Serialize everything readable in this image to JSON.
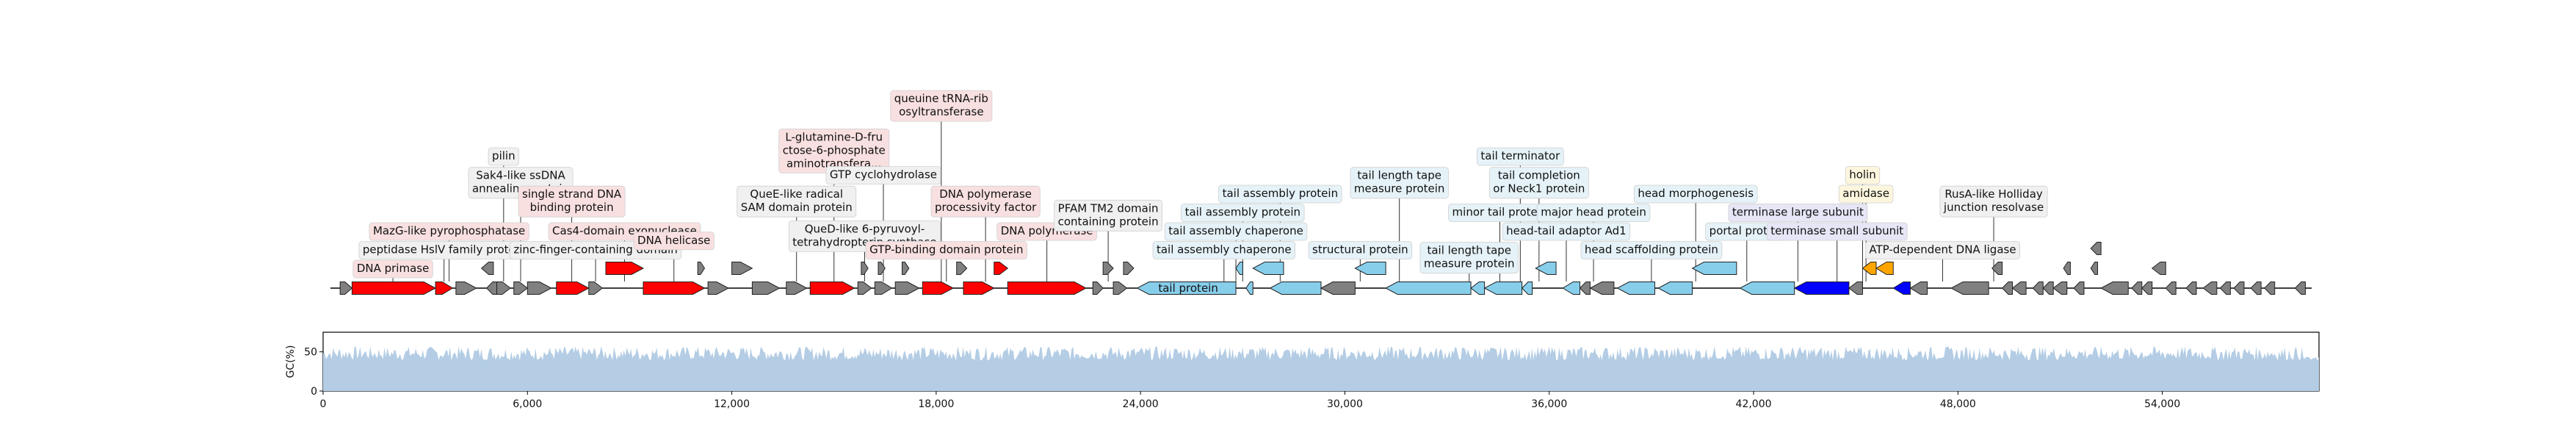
{
  "colors": {
    "grey": "#808080",
    "red": "#ff0000",
    "light_blue": "#87ceeb",
    "blue": "#0000ff",
    "orange": "#ffa500",
    "gc_fill": "#b4cde5",
    "box_red": "#f9e0e0",
    "box_blue": "#e5f2f8",
    "box_lavender": "#e6e6f7",
    "box_yellow": "#fdf6de",
    "box_grey": "#f0f0f0"
  },
  "genome": {
    "length": 58600
  },
  "genes": [
    {
      "start": 500,
      "end": 850,
      "strand": 1,
      "color": "grey"
    },
    {
      "start": 850,
      "end": 3300,
      "strand": 1,
      "color": "red",
      "label": "DNA primase"
    },
    {
      "start": 3300,
      "end": 3800,
      "strand": 1,
      "color": "red",
      "label": "peptidase HslV family protein"
    },
    {
      "start": 3900,
      "end": 4500,
      "strand": 1,
      "color": "grey"
    },
    {
      "start": 4650,
      "end": 5000,
      "strand": -1,
      "color": "grey",
      "row": 2
    },
    {
      "start": 4800,
      "end": 5100,
      "strand": -1,
      "color": "grey",
      "label": "MazG-like pyrophosphatase"
    },
    {
      "start": 5100,
      "end": 5500,
      "strand": 1,
      "color": "grey",
      "label": "pilin"
    },
    {
      "start": 5600,
      "end": 6000,
      "strand": 1,
      "color": "grey",
      "label": "Sak4-like ssDNA annealing protein"
    },
    {
      "start": 6000,
      "end": 6700,
      "strand": 1,
      "color": "grey"
    },
    {
      "start": 6850,
      "end": 7800,
      "strand": 1,
      "color": "red",
      "label": "single strand DNA binding protein"
    },
    {
      "start": 7800,
      "end": 8200,
      "strand": 1,
      "color": "grey",
      "label": "zinc-finger-containing domain"
    },
    {
      "start": 8300,
      "end": 9400,
      "strand": 1,
      "color": "red",
      "row": 2,
      "label": "Cas4-domain exonuclease"
    },
    {
      "start": 9400,
      "end": 11200,
      "strand": 1,
      "color": "red",
      "label": "DNA helicase"
    },
    {
      "start": 11000,
      "end": 11200,
      "strand": 1,
      "color": "grey",
      "row": 2
    },
    {
      "start": 11300,
      "end": 11900,
      "strand": 1,
      "color": "grey"
    },
    {
      "start": 12000,
      "end": 12600,
      "strand": 1,
      "color": "grey",
      "row": 2
    },
    {
      "start": 12600,
      "end": 13400,
      "strand": 1,
      "color": "grey"
    },
    {
      "start": 13600,
      "end": 14200,
      "strand": 1,
      "color": "grey",
      "label": "QueE-like radical SAM domain protein"
    },
    {
      "start": 14300,
      "end": 15600,
      "strand": 1,
      "color": "red",
      "label": "L-glutamine-D-fructose-6-phosphate aminotransfera..."
    },
    {
      "start": 15700,
      "end": 16100,
      "strand": 1,
      "color": "grey",
      "label": "QueD-like 6-pyruvoyl-tetrahydropterin synthase"
    },
    {
      "start": 15800,
      "end": 16000,
      "strand": 1,
      "color": "grey",
      "row": 2
    },
    {
      "start": 16300,
      "end": 16500,
      "strand": 1,
      "color": "grey",
      "row": 2
    },
    {
      "start": 16200,
      "end": 16700,
      "strand": 1,
      "color": "grey",
      "label": "GTP cyclohydrolase"
    },
    {
      "start": 16800,
      "end": 17500,
      "strand": 1,
      "color": "grey",
      "label": "queuine tRNA-ribosyltransferase"
    },
    {
      "start": 17000,
      "end": 17200,
      "strand": 1,
      "color": "grey",
      "row": 2
    },
    {
      "start": 17600,
      "end": 18500,
      "strand": 1,
      "color": "red",
      "label": "DNA polymerase processivity factor"
    },
    {
      "start": 18600,
      "end": 18900,
      "strand": 1,
      "color": "grey",
      "row": 2
    },
    {
      "start": 18800,
      "end": 19700,
      "strand": 1,
      "color": "red",
      "label": "GTP-binding domain protein"
    },
    {
      "start": 19700,
      "end": 20100,
      "strand": 1,
      "color": "red",
      "row": 2,
      "label": "DNA polymerase"
    },
    {
      "start": 20100,
      "end": 22400,
      "strand": 1,
      "color": "red"
    },
    {
      "start": 22600,
      "end": 22900,
      "strand": 1,
      "color": "grey"
    },
    {
      "start": 22900,
      "end": 23200,
      "strand": 1,
      "color": "grey",
      "row": 2
    },
    {
      "start": 23200,
      "end": 23600,
      "strand": 1,
      "color": "grey"
    },
    {
      "start": 23500,
      "end": 23800,
      "strand": 1,
      "color": "grey",
      "row": 2,
      "label": "PFAM TM2 domain containing protein"
    },
    {
      "start": 23900,
      "end": 26800,
      "strand": -1,
      "color": "light_blue",
      "label": "tail protein"
    },
    {
      "start": 26800,
      "end": 27000,
      "strand": -1,
      "color": "light_blue",
      "row": 2,
      "label": "tail assembly chaperone"
    },
    {
      "start": 27100,
      "end": 27300,
      "strand": -1,
      "color": "light_blue",
      "label": "tail assembly chaperone"
    },
    {
      "start": 27300,
      "end": 28200,
      "strand": -1,
      "color": "light_blue",
      "row": 2,
      "label": "tail assembly protein"
    },
    {
      "start": 27800,
      "end": 29300,
      "strand": -1,
      "color": "light_blue",
      "label": "tail assembly protein"
    },
    {
      "start": 29300,
      "end": 30300,
      "strand": -1,
      "color": "grey"
    },
    {
      "start": 30300,
      "end": 31200,
      "strand": -1,
      "color": "light_blue",
      "row": 2,
      "label": "structural protein"
    },
    {
      "start": 31200,
      "end": 33700,
      "strand": -1,
      "color": "light_blue",
      "label": "tail length tape measure protein"
    },
    {
      "start": 33700,
      "end": 34100,
      "strand": -1,
      "color": "light_blue",
      "label": "tail length tape measure protein"
    },
    {
      "start": 34100,
      "end": 35200,
      "strand": -1,
      "color": "light_blue",
      "label": "minor tail protein"
    },
    {
      "start": 35200,
      "end": 35500,
      "strand": -1,
      "color": "light_blue",
      "label": "tail terminator"
    },
    {
      "start": 35600,
      "end": 36200,
      "strand": -1,
      "color": "light_blue",
      "row": 2,
      "label": "tail completion or Neck1 protein"
    },
    {
      "start": 36400,
      "end": 36900,
      "strand": -1,
      "color": "light_blue",
      "label": "head-tail adaptor Ad1"
    },
    {
      "start": 36900,
      "end": 37200,
      "strand": -1,
      "color": "grey"
    },
    {
      "start": 37200,
      "end": 37900,
      "strand": -1,
      "color": "grey",
      "label": "major head protein"
    },
    {
      "start": 38000,
      "end": 39100,
      "strand": -1,
      "color": "light_blue",
      "label": "head scaffolding protein"
    },
    {
      "start": 39200,
      "end": 40200,
      "strand": -1,
      "color": "light_blue"
    },
    {
      "start": 40200,
      "end": 41500,
      "strand": -1,
      "color": "light_blue",
      "row": 2,
      "label": "head morphogenesis"
    },
    {
      "start": 41600,
      "end": 43200,
      "strand": -1,
      "color": "light_blue",
      "label": "portal protein"
    },
    {
      "start": 43200,
      "end": 44800,
      "strand": -1,
      "color": "blue",
      "label": "terminase large subunit"
    },
    {
      "start": 44800,
      "end": 45200,
      "strand": -1,
      "color": "grey"
    },
    {
      "start": 45200,
      "end": 45600,
      "strand": -1,
      "color": "orange",
      "row": 2,
      "label": "holin"
    },
    {
      "start": 45600,
      "end": 46100,
      "strand": -1,
      "color": "orange",
      "row": 2,
      "label": "amidase"
    },
    {
      "start": 46100,
      "end": 46600,
      "strand": -1,
      "color": "blue",
      "label": "terminase small subunit"
    },
    {
      "start": 46600,
      "end": 47100,
      "strand": -1,
      "color": "grey"
    },
    {
      "start": 47800,
      "end": 48900,
      "strand": -1,
      "color": "grey",
      "label": "ATP-dependent DNA ligase"
    },
    {
      "start": 49000,
      "end": 49300,
      "strand": -1,
      "color": "grey",
      "row": 2
    },
    {
      "start": 49300,
      "end": 49600,
      "strand": -1,
      "color": "grey",
      "label": "RusA-like Holliday junction resolvase"
    },
    {
      "start": 49600,
      "end": 50000,
      "strand": -1,
      "color": "grey"
    },
    {
      "start": 50200,
      "end": 50500,
      "strand": -1,
      "color": "grey"
    },
    {
      "start": 50500,
      "end": 50800,
      "strand": -1,
      "color": "grey"
    },
    {
      "start": 50800,
      "end": 51200,
      "strand": -1,
      "color": "grey"
    },
    {
      "start": 51100,
      "end": 51300,
      "strand": -1,
      "color": "grey",
      "row": 2
    },
    {
      "start": 51400,
      "end": 51700,
      "strand": -1,
      "color": "grey"
    },
    {
      "start": 51900,
      "end": 52100,
      "strand": -1,
      "color": "grey",
      "row": 2
    },
    {
      "start": 51900,
      "end": 52200,
      "strand": -1,
      "color": "grey",
      "row": 3
    },
    {
      "start": 52200,
      "end": 53000,
      "strand": -1,
      "color": "grey"
    },
    {
      "start": 53100,
      "end": 53400,
      "strand": -1,
      "color": "grey"
    },
    {
      "start": 53400,
      "end": 53700,
      "strand": -1,
      "color": "grey"
    },
    {
      "start": 53700,
      "end": 54100,
      "strand": -1,
      "color": "grey",
      "row": 2
    },
    {
      "start": 54100,
      "end": 54400,
      "strand": -1,
      "color": "grey"
    },
    {
      "start": 54700,
      "end": 55000,
      "strand": -1,
      "color": "grey"
    },
    {
      "start": 55200,
      "end": 55600,
      "strand": -1,
      "color": "grey"
    },
    {
      "start": 55700,
      "end": 56000,
      "strand": -1,
      "color": "grey"
    },
    {
      "start": 56100,
      "end": 56400,
      "strand": -1,
      "color": "grey"
    },
    {
      "start": 56600,
      "end": 56900,
      "strand": -1,
      "color": "grey"
    },
    {
      "start": 57000,
      "end": 57300,
      "strand": -1,
      "color": "grey"
    },
    {
      "start": 57900,
      "end": 58200,
      "strand": -1,
      "color": "grey"
    }
  ],
  "labels": [
    {
      "text": [
        "DNA primase"
      ],
      "pos": 2050,
      "level": 0,
      "bg": "box_red"
    },
    {
      "text": [
        "peptidase HslV family protein"
      ],
      "pos": 3550,
      "level": 1,
      "bg": "box_grey"
    },
    {
      "text": [
        "MazG-like pyrophosphatase"
      ],
      "pos": 3700,
      "level": 2,
      "bg": "box_red"
    },
    {
      "text": [
        "pilin"
      ],
      "pos": 5300,
      "level": 6,
      "bg": "box_grey"
    },
    {
      "text": [
        "Sak4-like ssDNA",
        "annealing protein"
      ],
      "pos": 5800,
      "level": 4.6,
      "bg": "box_grey"
    },
    {
      "text": [
        "zinc-finger-containing domain"
      ],
      "pos": 8000,
      "level": 1,
      "bg": "box_grey"
    },
    {
      "text": [
        "single strand DNA",
        "binding protein"
      ],
      "pos": 7300,
      "level": 3.6,
      "bg": "box_red"
    },
    {
      "text": [
        "Cas4-domain exonuclease"
      ],
      "pos": 8850,
      "level": 2,
      "bg": "box_red"
    },
    {
      "text": [
        "DNA helicase"
      ],
      "pos": 10300,
      "level": 1.5,
      "bg": "box_red"
    },
    {
      "text": [
        "QueE-like radical",
        "SAM domain protein"
      ],
      "pos": 13900,
      "level": 3.6,
      "bg": "box_grey"
    },
    {
      "text": [
        "L-glutamine-D-fru",
        "ctose-6-phosphate",
        "aminotransfera..."
      ],
      "pos": 15000,
      "level": 6.3,
      "bg": "box_red"
    },
    {
      "text": [
        "QueD-like 6-pyruvoyl-",
        "tetrahydropterin synthase"
      ],
      "pos": 15900,
      "level": 1.75,
      "bg": "box_grey"
    },
    {
      "text": [
        "GTP cyclohydrolase"
      ],
      "pos": 16450,
      "level": 5,
      "bg": "box_grey"
    },
    {
      "text": [
        "queuine tRNA-rib",
        "osyltransferase"
      ],
      "pos": 18150,
      "level": 8.7,
      "bg": "box_red"
    },
    {
      "text": [
        "DNA polymerase",
        "processivity factor"
      ],
      "pos": 19450,
      "level": 3.6,
      "bg": "box_red"
    },
    {
      "text": [
        "GTP-binding domain protein"
      ],
      "pos": 18300,
      "level": 1,
      "bg": "box_red"
    },
    {
      "text": [
        "DNA polymerase"
      ],
      "pos": 21250,
      "level": 2,
      "bg": "box_red"
    },
    {
      "text": [
        "PFAM TM2 domain",
        "containing protein"
      ],
      "pos": 23050,
      "level": 2.85,
      "bg": "box_grey"
    },
    {
      "text": [
        "tail assembly chaperone"
      ],
      "pos": 26450,
      "level": 1,
      "bg": "box_blue"
    },
    {
      "text": [
        "tail assembly chaperone"
      ],
      "pos": 26800,
      "level": 2,
      "bg": "box_blue"
    },
    {
      "text": [
        "tail assembly protein"
      ],
      "pos": 27000,
      "level": 3,
      "bg": "box_blue"
    },
    {
      "text": [
        "tail assembly protein"
      ],
      "pos": 28100,
      "level": 4,
      "bg": "box_blue"
    },
    {
      "text": [
        "structural protein"
      ],
      "pos": 30450,
      "level": 1,
      "bg": "box_blue"
    },
    {
      "text": [
        "tail length tape",
        "measure protein"
      ],
      "pos": 31600,
      "level": 4.6,
      "bg": "box_blue"
    },
    {
      "text": [
        "tail length tape",
        "measure protein"
      ],
      "pos": 33650,
      "level": 0.6,
      "bg": "box_blue"
    },
    {
      "text": [
        "minor tail protein"
      ],
      "pos": 34550,
      "level": 3,
      "bg": "box_blue"
    },
    {
      "text": [
        "tail terminator"
      ],
      "pos": 35150,
      "level": 6,
      "bg": "box_blue"
    },
    {
      "text": [
        "tail completion",
        "or Neck1 protein"
      ],
      "pos": 35700,
      "level": 4.6,
      "bg": "box_blue"
    },
    {
      "text": [
        "head-tail adaptor Ad1"
      ],
      "pos": 36500,
      "level": 2,
      "bg": "box_blue"
    },
    {
      "text": [
        "major head protein"
      ],
      "pos": 37300,
      "level": 3,
      "bg": "box_blue"
    },
    {
      "text": [
        "head scaffolding protein"
      ],
      "pos": 39000,
      "level": 1,
      "bg": "box_blue"
    },
    {
      "text": [
        "head morphogenesis"
      ],
      "pos": 40300,
      "level": 4,
      "bg": "box_blue"
    },
    {
      "text": [
        "portal protein"
      ],
      "pos": 41800,
      "level": 2,
      "bg": "box_blue"
    },
    {
      "text": [
        "terminase large subunit"
      ],
      "pos": 43300,
      "level": 3,
      "bg": "box_lavender"
    },
    {
      "text": [
        "terminase small subunit"
      ],
      "pos": 44450,
      "level": 2,
      "bg": "box_lavender"
    },
    {
      "text": [
        "holin"
      ],
      "pos": 45200,
      "level": 5,
      "bg": "box_yellow"
    },
    {
      "text": [
        "amidase"
      ],
      "pos": 45300,
      "level": 4,
      "bg": "box_yellow"
    },
    {
      "text": [
        "ATP-dependent DNA ligase"
      ],
      "pos": 47550,
      "level": 1,
      "bg": "box_grey"
    },
    {
      "text": [
        "RusA-like Holliday",
        "junction resolvase"
      ],
      "pos": 49050,
      "level": 3.6,
      "bg": "box_grey"
    }
  ],
  "in_gene_labels": [
    {
      "text": "tail protein",
      "pos": 25400
    }
  ],
  "gc_plot": {
    "ylabel": "GC(%)",
    "yticks": [
      "0",
      "50"
    ],
    "ylim": [
      0,
      75
    ],
    "mean": 48
  },
  "x_axis": {
    "ticks": [
      {
        "value": 0,
        "label": "0"
      },
      {
        "value": 6000,
        "label": "6,000"
      },
      {
        "value": 12000,
        "label": "12,000"
      },
      {
        "value": 18000,
        "label": "18,000"
      },
      {
        "value": 24000,
        "label": "24,000"
      },
      {
        "value": 30000,
        "label": "30,000"
      },
      {
        "value": 36000,
        "label": "36,000"
      },
      {
        "value": 42000,
        "label": "42,000"
      },
      {
        "value": 48000,
        "label": "48,000"
      },
      {
        "value": 54000,
        "label": "54,000"
      }
    ]
  }
}
